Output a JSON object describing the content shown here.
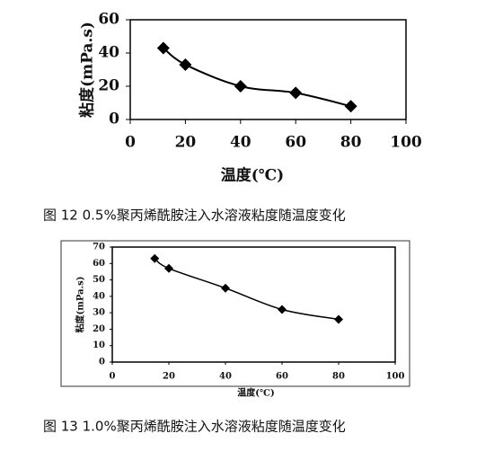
{
  "chart_data": [
    {
      "type": "line",
      "x": [
        12,
        20,
        40,
        60,
        80
      ],
      "series": [
        {
          "color": "#000000",
          "values": [
            43,
            33,
            20,
            16,
            8
          ]
        }
      ],
      "xlim": [
        0,
        100
      ],
      "ylim": [
        0,
        60
      ],
      "xticks": [
        0,
        20,
        40,
        60,
        80,
        100
      ],
      "yticks": [
        0,
        20,
        40,
        60
      ],
      "xlabel": "温度(℃)",
      "ylabel": "粘度(mPa.s)",
      "caption": "图 12   0.5%聚丙烯酰胺注入水溶液粘度随温度变化",
      "marker": "diamond"
    },
    {
      "type": "line",
      "x": [
        15,
        20,
        40,
        60,
        80
      ],
      "series": [
        {
          "color": "#000000",
          "values": [
            63,
            57,
            45,
            32,
            26
          ]
        }
      ],
      "xlim": [
        0,
        100
      ],
      "ylim": [
        0,
        70
      ],
      "xticks": [
        0,
        20,
        40,
        60,
        80,
        100
      ],
      "yticks": [
        0,
        10,
        20,
        30,
        40,
        50,
        60,
        70
      ],
      "xlabel": "温度(℃)",
      "ylabel": "粘度(mPa.s)",
      "caption": "图 13   1.0%聚丙烯酰胺注入水溶液粘度随温度变化",
      "marker": "diamond"
    }
  ]
}
